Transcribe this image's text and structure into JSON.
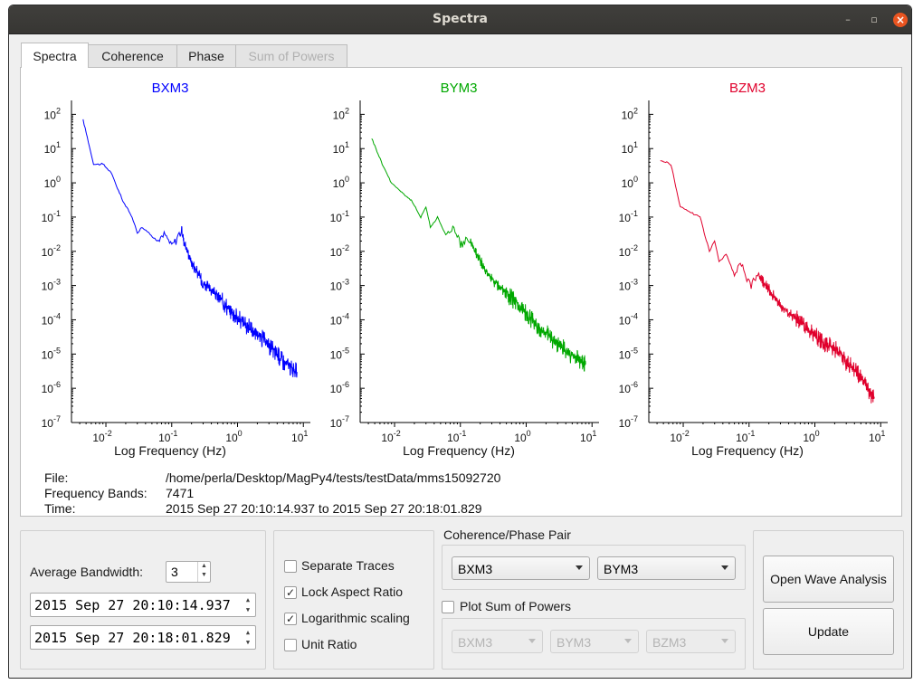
{
  "window": {
    "title": "Spectra",
    "minimize_glyph": "–",
    "maximize_glyph": "▫",
    "close_glyph": "×"
  },
  "tabs": [
    {
      "label": "Spectra",
      "active": true,
      "enabled": true
    },
    {
      "label": "Coherence",
      "active": false,
      "enabled": true
    },
    {
      "label": "Phase",
      "active": false,
      "enabled": true
    },
    {
      "label": "Sum of Powers",
      "active": false,
      "enabled": false
    }
  ],
  "plots": [
    {
      "title": "BXM3",
      "color": "#0000ff",
      "xlabel": "Log Frequency (Hz)"
    },
    {
      "title": "BYM3",
      "color": "#00a800",
      "xlabel": "Log Frequency (Hz)"
    },
    {
      "title": "BZM3",
      "color": "#e0002c",
      "xlabel": "Log Frequency (Hz)"
    }
  ],
  "axis": {
    "y_ticks": [
      "2",
      "1",
      "0",
      "-1",
      "-2",
      "-3",
      "-4",
      "-5",
      "-6",
      "-7"
    ],
    "y_base": "10",
    "x_ticks": [
      "-2",
      "-1",
      "0",
      "1"
    ],
    "x_base": "10"
  },
  "chart_data": [
    {
      "type": "line",
      "title": "BXM3",
      "xlabel": "Log Frequency (Hz)",
      "x_scale": "log",
      "y_scale": "log",
      "xlim": [
        0.003,
        12
      ],
      "ylim": [
        1e-07,
        200
      ],
      "x": [
        0.0045,
        0.0065,
        0.009,
        0.012,
        0.018,
        0.025,
        0.03,
        0.035,
        0.045,
        0.06,
        0.08,
        0.1,
        0.14,
        0.16,
        0.2,
        0.3,
        0.5,
        0.8,
        1.2,
        2,
        3,
        5,
        8
      ],
      "y": [
        70,
        3.5,
        3.5,
        2,
        0.3,
        0.1,
        0.035,
        0.05,
        0.035,
        0.02,
        0.03,
        0.015,
        0.04,
        0.015,
        0.005,
        0.0012,
        0.0005,
        0.00018,
        8e-05,
        4e-05,
        1.8e-05,
        6e-06,
        3e-06
      ]
    },
    {
      "type": "line",
      "title": "BYM3",
      "xlabel": "Log Frequency (Hz)",
      "x_scale": "log",
      "y_scale": "log",
      "xlim": [
        0.003,
        12
      ],
      "ylim": [
        1e-07,
        200
      ],
      "x": [
        0.0045,
        0.0065,
        0.009,
        0.012,
        0.018,
        0.025,
        0.03,
        0.035,
        0.045,
        0.06,
        0.08,
        0.1,
        0.14,
        0.2,
        0.3,
        0.5,
        0.8,
        1.2,
        2,
        3,
        5,
        8
      ],
      "y": [
        20,
        3.5,
        1,
        0.6,
        0.3,
        0.1,
        0.2,
        0.05,
        0.1,
        0.03,
        0.05,
        0.015,
        0.02,
        0.005,
        0.0015,
        0.0006,
        0.00025,
        0.0001,
        4e-05,
        2e-05,
        9e-06,
        5e-06
      ]
    },
    {
      "type": "line",
      "title": "BZM3",
      "xlabel": "Log Frequency (Hz)",
      "x_scale": "log",
      "y_scale": "log",
      "xlim": [
        0.003,
        12
      ],
      "ylim": [
        1e-07,
        200
      ],
      "x": [
        0.0045,
        0.0065,
        0.009,
        0.012,
        0.018,
        0.025,
        0.03,
        0.035,
        0.045,
        0.06,
        0.08,
        0.1,
        0.14,
        0.2,
        0.3,
        0.5,
        0.8,
        1.2,
        2,
        3,
        5,
        8
      ],
      "y": [
        4.5,
        3.5,
        0.2,
        0.15,
        0.1,
        0.01,
        0.02,
        0.005,
        0.008,
        0.002,
        0.004,
        0.001,
        0.002,
        0.0008,
        0.00025,
        0.00012,
        5e-05,
        2.5e-05,
        1.5e-05,
        6e-06,
        2e-06,
        5e-07
      ]
    }
  ],
  "info": {
    "file_label": "File:",
    "file_value": "/home/perla/Desktop/MagPy4/tests/testData/mms15092720",
    "bands_label": "Frequency Bands:",
    "bands_value": "7471",
    "time_label": "Time:",
    "time_value": "2015 Sep 27 20:10:14.937 to 2015 Sep 27 20:18:01.829"
  },
  "controls": {
    "avg_bandwidth_label": "Average Bandwidth:",
    "avg_bandwidth_value": "3",
    "start_time": "2015 Sep 27 20:10:14.937",
    "end_time": "2015 Sep 27 20:18:01.829",
    "checkboxes": [
      {
        "label": "Separate Traces",
        "checked": false
      },
      {
        "label": "Lock Aspect Ratio",
        "checked": true
      },
      {
        "label": "Logarithmic scaling",
        "checked": true
      },
      {
        "label": "Unit Ratio",
        "checked": false
      }
    ],
    "pair_title": "Coherence/Phase Pair",
    "pair_a": "BXM3",
    "pair_b": "BYM3",
    "sum_powers_label": "Plot Sum of Powers",
    "sum_powers_checked": false,
    "sum_combos": [
      "BXM3",
      "BYM3",
      "BZM3"
    ],
    "open_wave_label": "Open Wave Analysis",
    "update_label": "Update"
  }
}
